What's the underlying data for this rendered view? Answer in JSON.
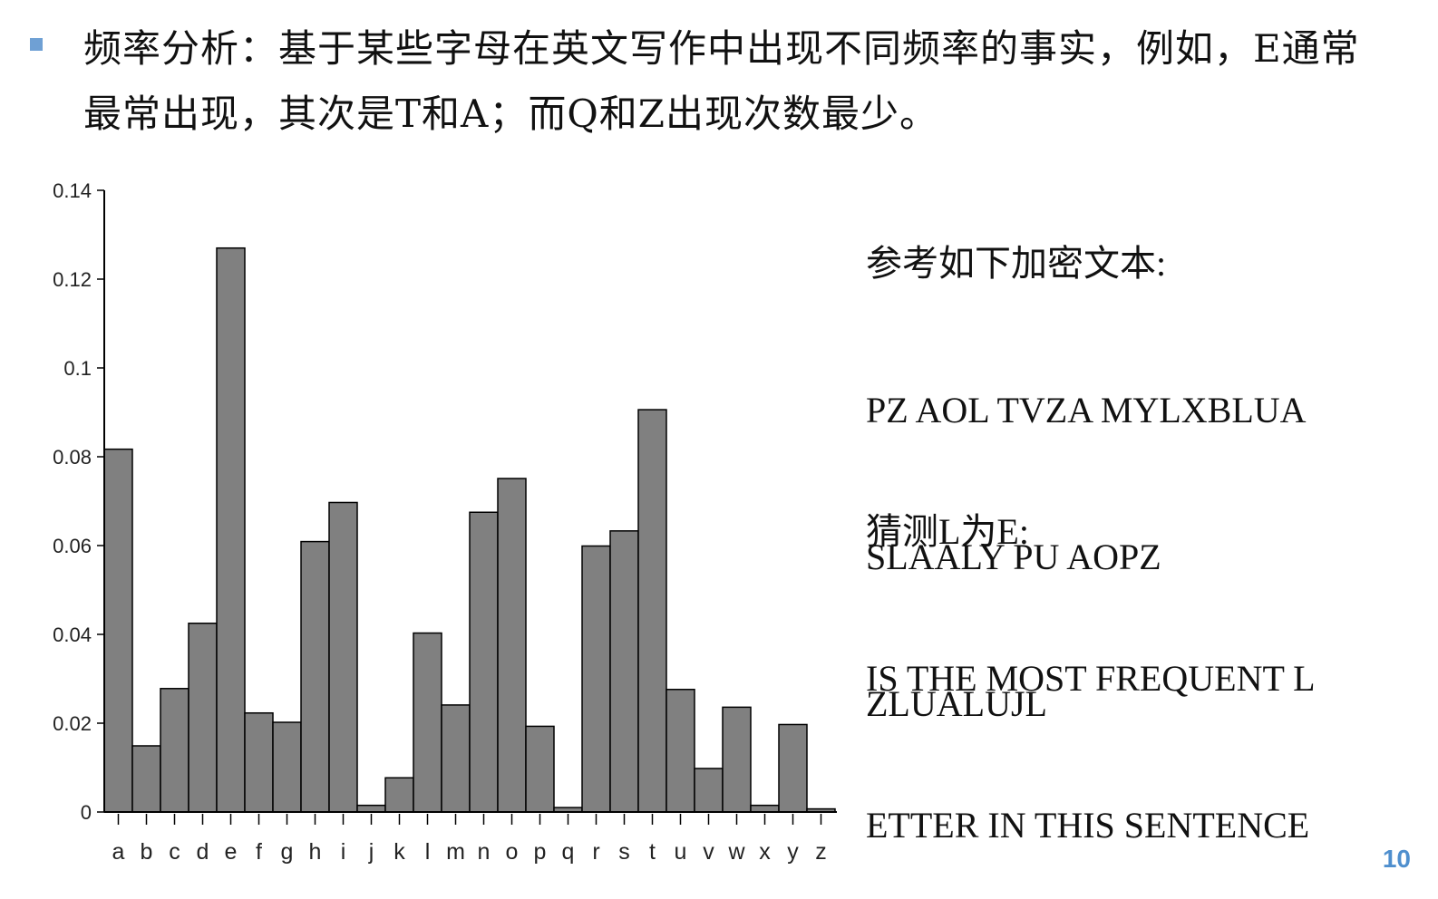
{
  "slide": {
    "bullet_color": "#6fa0d4",
    "intro_text": "频率分析：基于某些字母在英文写作中出现不同频率的事实，例如，E通常最常出现，其次是T和A；而Q和Z出现次数最少。",
    "page_number": "10",
    "page_number_color": "#4f8fce"
  },
  "cipher": {
    "heading": "参考如下加密文本:",
    "lines": [
      "PZ AOL TVZA MYLXBLUA",
      "SLAALY PU AOPZ",
      "ZLUALUJL"
    ]
  },
  "guess": {
    "heading": "猜测L为E:",
    "lines": [
      "IS THE MOST FREQUENT L",
      "ETTER IN THIS SENTENCE"
    ]
  },
  "chart_data": {
    "type": "bar",
    "categories": [
      "a",
      "b",
      "c",
      "d",
      "e",
      "f",
      "g",
      "h",
      "i",
      "j",
      "k",
      "l",
      "m",
      "n",
      "o",
      "p",
      "q",
      "r",
      "s",
      "t",
      "u",
      "v",
      "w",
      "x",
      "y",
      "z"
    ],
    "values": [
      0.0817,
      0.0149,
      0.0278,
      0.0425,
      0.127,
      0.0223,
      0.0202,
      0.0609,
      0.0697,
      0.0015,
      0.0077,
      0.0403,
      0.0241,
      0.0675,
      0.0751,
      0.0193,
      0.001,
      0.0599,
      0.0633,
      0.0906,
      0.0276,
      0.0098,
      0.0236,
      0.0015,
      0.0197,
      0.0007
    ],
    "yticks": [
      "0",
      "0.02",
      "0.04",
      "0.06",
      "0.08",
      "0.1",
      "0.12",
      "0.14"
    ],
    "ylim": [
      0,
      0.14
    ],
    "bar_color": "#808080",
    "title": "",
    "xlabel": "",
    "ylabel": "",
    "grid": false
  }
}
